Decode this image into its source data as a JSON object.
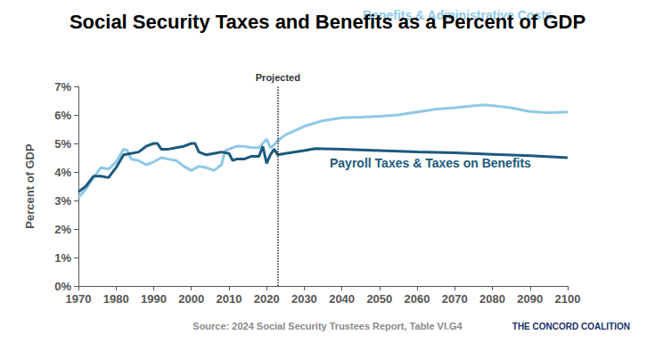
{
  "chart_data": {
    "type": "line",
    "title": "Social Security Taxes and Benefits as a Percent of GDP",
    "y_label": "Percent of GDP",
    "source": "Source: 2024 Social Security Trustees Report, Table VI.G4",
    "publisher": "THE CONCORD COALITION",
    "annotations": [
      {
        "text": "Projected",
        "x": 2023
      }
    ],
    "xlim": [
      1970,
      2100
    ],
    "xticks": [
      1970,
      1980,
      1990,
      2000,
      2010,
      2020,
      2030,
      2040,
      2050,
      2060,
      2070,
      2080,
      2090,
      2100
    ],
    "ylim": [
      0,
      7
    ],
    "yticks": [
      {
        "value": 0,
        "label": "0%"
      },
      {
        "value": 1,
        "label": "1%"
      },
      {
        "value": 2,
        "label": "2%"
      },
      {
        "value": 3,
        "label": "3%"
      },
      {
        "value": 4,
        "label": "4%"
      },
      {
        "value": 5,
        "label": "5%"
      },
      {
        "value": 6,
        "label": "6%"
      },
      {
        "value": 7,
        "label": "7%"
      }
    ],
    "grid": false,
    "series": [
      {
        "name": "Benefits & Administrative Costs",
        "color": "#8ec8e8",
        "x": [
          1970,
          1972,
          1974,
          1976,
          1978,
          1980,
          1982,
          1983,
          1984,
          1986,
          1988,
          1990,
          1992,
          1994,
          1996,
          1998,
          2000,
          2002,
          2004,
          2006,
          2008,
          2009,
          2010,
          2012,
          2014,
          2016,
          2018,
          2020,
          2021,
          2022,
          2023,
          2025,
          2030,
          2035,
          2040,
          2045,
          2050,
          2055,
          2060,
          2065,
          2070,
          2075,
          2078,
          2080,
          2085,
          2090,
          2095,
          2100
        ],
        "values": [
          3.1,
          3.4,
          3.8,
          4.15,
          4.1,
          4.35,
          4.8,
          4.75,
          4.45,
          4.4,
          4.25,
          4.35,
          4.5,
          4.45,
          4.4,
          4.2,
          4.05,
          4.2,
          4.15,
          4.05,
          4.25,
          4.75,
          4.8,
          4.9,
          4.9,
          4.85,
          4.85,
          5.15,
          4.85,
          4.95,
          5.1,
          5.3,
          5.6,
          5.8,
          5.9,
          5.92,
          5.95,
          6.0,
          6.1,
          6.2,
          6.25,
          6.32,
          6.35,
          6.33,
          6.25,
          6.12,
          6.08,
          6.1
        ]
      },
      {
        "name": "Payroll Taxes & Taxes on Benefits",
        "color": "#1b5a7c",
        "x": [
          1970,
          1972,
          1974,
          1976,
          1978,
          1980,
          1982,
          1984,
          1986,
          1988,
          1990,
          1991,
          1992,
          1994,
          1996,
          1998,
          2000,
          2001,
          2002,
          2004,
          2006,
          2008,
          2010,
          2011,
          2012,
          2014,
          2016,
          2018,
          2019,
          2020,
          2021,
          2022,
          2023,
          2025,
          2030,
          2033,
          2040,
          2050,
          2060,
          2070,
          2080,
          2090,
          2100
        ],
        "values": [
          3.3,
          3.5,
          3.85,
          3.85,
          3.8,
          4.15,
          4.6,
          4.65,
          4.7,
          4.9,
          5.0,
          5.0,
          4.8,
          4.8,
          4.85,
          4.9,
          5.0,
          5.0,
          4.7,
          4.6,
          4.65,
          4.7,
          4.65,
          4.4,
          4.45,
          4.45,
          4.55,
          4.55,
          4.9,
          4.3,
          4.6,
          4.8,
          4.6,
          4.65,
          4.75,
          4.82,
          4.8,
          4.75,
          4.7,
          4.67,
          4.62,
          4.57,
          4.5
        ]
      }
    ]
  }
}
